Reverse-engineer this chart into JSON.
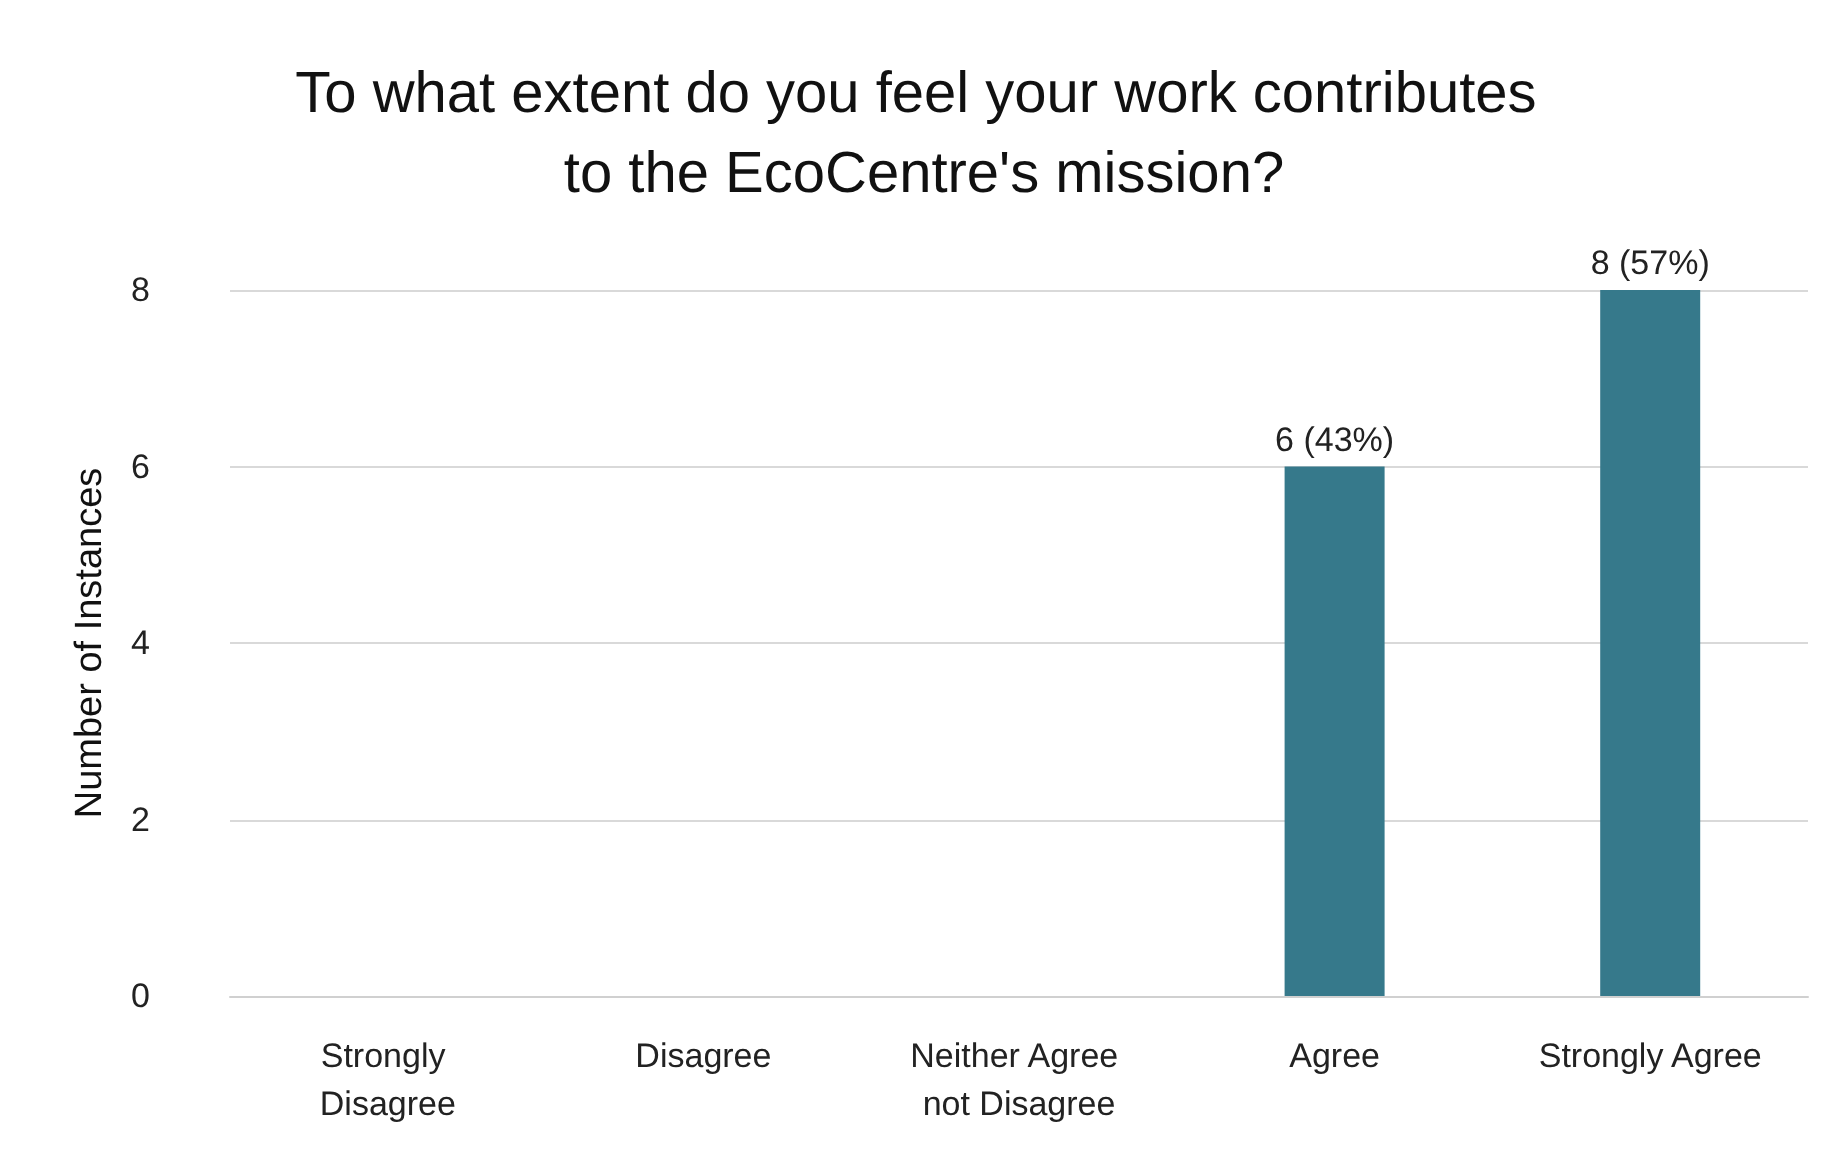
{
  "chart_data": {
    "type": "bar",
    "title": "To what extent do you feel your work contributes to the EcoCentre's mission?",
    "ylabel": "Number of Instances",
    "categories": [
      "Strongly Disagree",
      "Disagree",
      "Neither Agree not Disagree",
      "Agree",
      "Strongly Agree"
    ],
    "values": [
      0,
      0,
      0,
      6,
      8
    ],
    "value_labels": [
      null,
      null,
      null,
      "6 (43%)",
      "8 (57%)"
    ],
    "color": "#36798b",
    "ylim": [
      0,
      8
    ],
    "yticks": [
      0,
      2,
      4,
      6,
      8
    ],
    "grid": "y"
  }
}
